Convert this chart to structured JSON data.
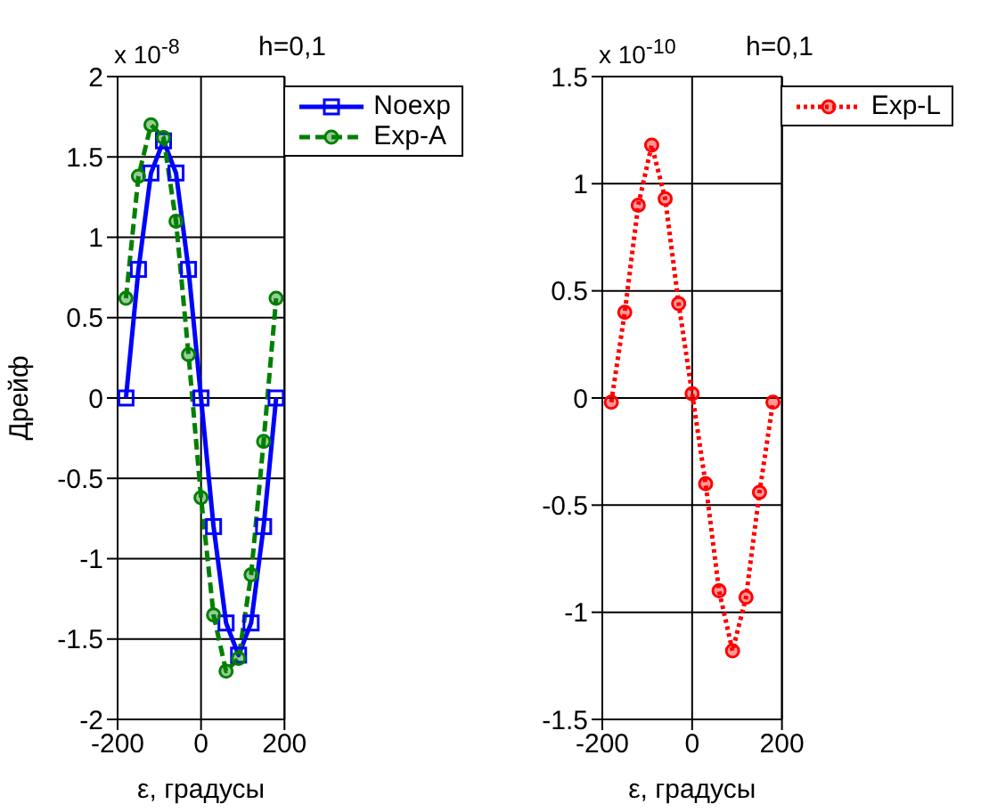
{
  "chart_data": [
    {
      "type": "line",
      "title": "h=0,1",
      "annotations": [
        "x 10$^{-8}$"
      ],
      "xlabel": "ε, градусы",
      "ylabel": "Дрейф",
      "xlim": [
        -200,
        200
      ],
      "xticks": [
        -200,
        0,
        200
      ],
      "ylim": [
        -2,
        2
      ],
      "yticks": [
        -2,
        -1.5,
        -1,
        -0.5,
        0,
        0.5,
        1,
        1.5,
        2
      ],
      "grid": true,
      "legend": "top right",
      "x": [
        -180,
        -150,
        -120,
        -90,
        -60,
        -30,
        0,
        30,
        60,
        90,
        120,
        150,
        180
      ],
      "series": [
        {
          "name": "Noexp",
          "color": "#0000ff",
          "marker": "square",
          "line_style": "solid",
          "values": [
            0,
            0.8,
            1.4,
            1.6,
            1.4,
            0.8,
            0,
            -0.8,
            -1.4,
            -1.6,
            -1.4,
            -0.8,
            0
          ]
        },
        {
          "name": "Exp-A",
          "color": "#008000",
          "marker": "circle",
          "line_style": "dashed",
          "values": [
            0.62,
            1.38,
            1.7,
            1.62,
            1.1,
            0.27,
            -0.62,
            -1.35,
            -1.7,
            -1.62,
            -1.1,
            -0.27,
            0.62
          ]
        }
      ]
    },
    {
      "type": "line",
      "title": "h=0,1",
      "annotations": [
        "x 10$^{-10}$"
      ],
      "xlabel": "ε, градусы",
      "xlim": [
        -200,
        200
      ],
      "xticks": [
        -200,
        0,
        200
      ],
      "ylim": [
        -1.5,
        1.5
      ],
      "yticks": [
        -1.5,
        -1,
        -0.5,
        0,
        0.5,
        1,
        1.5
      ],
      "grid": true,
      "legend": "top right",
      "x": [
        -180,
        -150,
        -120,
        -90,
        -60,
        -30,
        0,
        30,
        60,
        90,
        120,
        150,
        180
      ],
      "series": [
        {
          "name": "Exp-L",
          "color": "#ff0000",
          "marker": "circle",
          "line_style": "dotted",
          "values": [
            -0.02,
            0.4,
            0.9,
            1.18,
            0.93,
            0.44,
            0.02,
            -0.4,
            -0.9,
            -1.18,
            -0.93,
            -0.44,
            -0.02
          ]
        }
      ]
    }
  ]
}
